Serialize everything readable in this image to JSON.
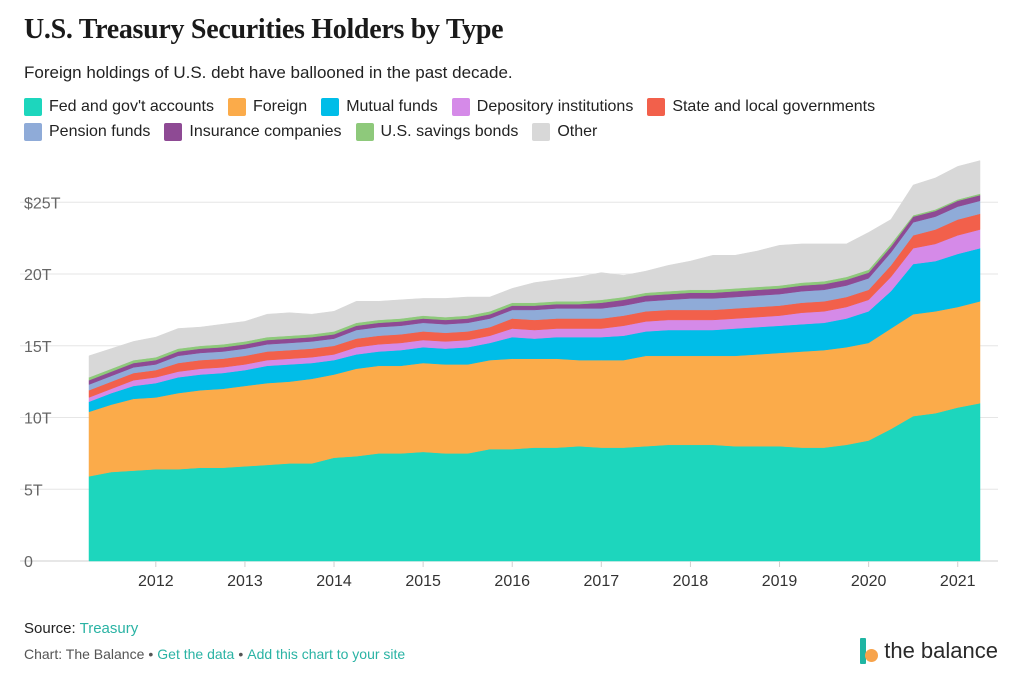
{
  "title": "U.S. Treasury Securities Holders by Type",
  "subtitle": "Foreign holdings of U.S. debt have ballooned in the past decade.",
  "legend": [
    {
      "label": "Fed and gov't accounts",
      "color": "#1dd6bd"
    },
    {
      "label": "Foreign",
      "color": "#fbab4a"
    },
    {
      "label": "Mutual funds",
      "color": "#00bde8"
    },
    {
      "label": "Depository institutions",
      "color": "#d58ae8"
    },
    {
      "label": "State and local governments",
      "color": "#f2604b"
    },
    {
      "label": "Pension funds",
      "color": "#8fabd8"
    },
    {
      "label": "Insurance companies",
      "color": "#8e4a94"
    },
    {
      "label": "U.S. savings bonds",
      "color": "#8ec97b"
    },
    {
      "label": "Other",
      "color": "#d8d8d8"
    }
  ],
  "source": {
    "prefix": "Source:",
    "link": "Treasury"
  },
  "footer": {
    "credit": "Chart: The Balance",
    "get_data": "Get the data",
    "add_chart": "Add this chart to your site",
    "separator": "•"
  },
  "brand": {
    "name": "the balance"
  },
  "chart_data": {
    "type": "area",
    "stacked": true,
    "x": [
      2011.25,
      2011.5,
      2011.75,
      2012.0,
      2012.25,
      2012.5,
      2012.75,
      2013.0,
      2013.25,
      2013.5,
      2013.75,
      2014.0,
      2014.25,
      2014.5,
      2014.75,
      2015.0,
      2015.25,
      2015.5,
      2015.75,
      2016.0,
      2016.25,
      2016.5,
      2016.75,
      2017.0,
      2017.25,
      2017.5,
      2017.75,
      2018.0,
      2018.25,
      2018.5,
      2018.75,
      2019.0,
      2019.25,
      2019.5,
      2019.75,
      2020.0,
      2020.25,
      2020.5,
      2020.75,
      2021.0,
      2021.25
    ],
    "xlim": [
      2011.25,
      2021.25
    ],
    "ylim": [
      0,
      28
    ],
    "yticks": [
      0,
      5,
      10,
      15,
      20,
      25
    ],
    "ytick_labels": [
      "0",
      "5T",
      "10T",
      "15T",
      "20T",
      "$25T"
    ],
    "xticks": [
      2012,
      2013,
      2014,
      2015,
      2016,
      2017,
      2018,
      2019,
      2020,
      2021
    ],
    "xtick_labels": [
      "2012",
      "2013",
      "2014",
      "2015",
      "2016",
      "2017",
      "2018",
      "2019",
      "2020",
      "2021"
    ],
    "grid": true,
    "legend_position": "top",
    "series": [
      {
        "name": "Fed and gov't accounts",
        "values": [
          5.9,
          6.2,
          6.3,
          6.4,
          6.4,
          6.5,
          6.5,
          6.6,
          6.7,
          6.8,
          6.8,
          7.2,
          7.3,
          7.5,
          7.5,
          7.6,
          7.5,
          7.5,
          7.8,
          7.8,
          7.9,
          7.9,
          8.0,
          7.9,
          7.9,
          8.0,
          8.1,
          8.1,
          8.1,
          8.0,
          8.0,
          8.0,
          7.9,
          7.9,
          8.1,
          8.4,
          9.2,
          10.1,
          10.3,
          10.7,
          11.0
        ]
      },
      {
        "name": "Foreign",
        "values": [
          4.5,
          4.7,
          5.0,
          5.0,
          5.3,
          5.4,
          5.5,
          5.6,
          5.7,
          5.7,
          5.9,
          5.8,
          6.1,
          6.1,
          6.1,
          6.2,
          6.2,
          6.2,
          6.2,
          6.3,
          6.2,
          6.2,
          6.0,
          6.1,
          6.1,
          6.3,
          6.2,
          6.2,
          6.2,
          6.3,
          6.4,
          6.5,
          6.7,
          6.8,
          6.8,
          6.8,
          7.0,
          7.1,
          7.1,
          7.0,
          7.1
        ]
      },
      {
        "name": "Mutual funds",
        "values": [
          0.7,
          0.8,
          0.9,
          1.0,
          1.1,
          1.1,
          1.1,
          1.1,
          1.2,
          1.2,
          1.1,
          1.0,
          1.0,
          1.0,
          1.1,
          1.1,
          1.1,
          1.2,
          1.2,
          1.5,
          1.4,
          1.5,
          1.6,
          1.6,
          1.7,
          1.7,
          1.8,
          1.8,
          1.8,
          1.9,
          1.9,
          1.9,
          1.9,
          1.9,
          2.0,
          2.2,
          2.6,
          3.5,
          3.5,
          3.7,
          3.7
        ]
      },
      {
        "name": "Depository institutions",
        "values": [
          0.3,
          0.3,
          0.4,
          0.4,
          0.4,
          0.4,
          0.4,
          0.4,
          0.4,
          0.4,
          0.4,
          0.4,
          0.5,
          0.5,
          0.5,
          0.5,
          0.5,
          0.5,
          0.5,
          0.6,
          0.6,
          0.6,
          0.6,
          0.6,
          0.7,
          0.7,
          0.7,
          0.7,
          0.7,
          0.7,
          0.7,
          0.7,
          0.8,
          0.8,
          0.8,
          0.8,
          1.0,
          1.1,
          1.2,
          1.3,
          1.3
        ]
      },
      {
        "name": "State and local governments",
        "values": [
          0.5,
          0.5,
          0.5,
          0.5,
          0.6,
          0.6,
          0.6,
          0.6,
          0.6,
          0.6,
          0.6,
          0.6,
          0.6,
          0.6,
          0.6,
          0.6,
          0.6,
          0.6,
          0.6,
          0.7,
          0.7,
          0.7,
          0.7,
          0.7,
          0.7,
          0.7,
          0.7,
          0.7,
          0.7,
          0.7,
          0.7,
          0.7,
          0.7,
          0.7,
          0.7,
          0.7,
          0.8,
          0.9,
          1.0,
          1.1,
          1.1
        ]
      },
      {
        "name": "Pension funds",
        "values": [
          0.4,
          0.4,
          0.4,
          0.4,
          0.5,
          0.5,
          0.5,
          0.5,
          0.5,
          0.5,
          0.5,
          0.5,
          0.6,
          0.6,
          0.6,
          0.6,
          0.6,
          0.6,
          0.6,
          0.6,
          0.7,
          0.7,
          0.7,
          0.7,
          0.7,
          0.7,
          0.7,
          0.8,
          0.8,
          0.8,
          0.8,
          0.8,
          0.8,
          0.8,
          0.8,
          0.8,
          0.9,
          0.9,
          0.9,
          0.9,
          0.9
        ]
      },
      {
        "name": "Insurance companies",
        "values": [
          0.3,
          0.3,
          0.3,
          0.3,
          0.3,
          0.3,
          0.3,
          0.3,
          0.3,
          0.3,
          0.3,
          0.3,
          0.3,
          0.3,
          0.3,
          0.3,
          0.3,
          0.3,
          0.3,
          0.3,
          0.3,
          0.3,
          0.3,
          0.4,
          0.4,
          0.4,
          0.4,
          0.4,
          0.4,
          0.4,
          0.4,
          0.4,
          0.4,
          0.4,
          0.4,
          0.4,
          0.4,
          0.4,
          0.4,
          0.4,
          0.4
        ]
      },
      {
        "name": "U.S. savings bonds",
        "values": [
          0.2,
          0.2,
          0.2,
          0.2,
          0.2,
          0.2,
          0.2,
          0.2,
          0.2,
          0.2,
          0.2,
          0.2,
          0.2,
          0.2,
          0.2,
          0.2,
          0.2,
          0.2,
          0.2,
          0.2,
          0.2,
          0.2,
          0.2,
          0.2,
          0.2,
          0.2,
          0.2,
          0.2,
          0.2,
          0.2,
          0.2,
          0.2,
          0.2,
          0.2,
          0.2,
          0.2,
          0.2,
          0.1,
          0.1,
          0.1,
          0.1
        ]
      },
      {
        "name": "Other",
        "values": [
          1.5,
          1.4,
          1.3,
          1.4,
          1.4,
          1.3,
          1.4,
          1.4,
          1.6,
          1.6,
          1.4,
          1.4,
          1.5,
          1.3,
          1.3,
          1.2,
          1.3,
          1.3,
          1.0,
          1.0,
          1.4,
          1.5,
          1.7,
          1.9,
          1.5,
          1.5,
          1.8,
          2.0,
          2.4,
          2.3,
          2.5,
          2.8,
          2.7,
          2.6,
          2.3,
          2.6,
          1.7,
          2.1,
          2.2,
          2.3,
          2.3
        ]
      }
    ]
  }
}
